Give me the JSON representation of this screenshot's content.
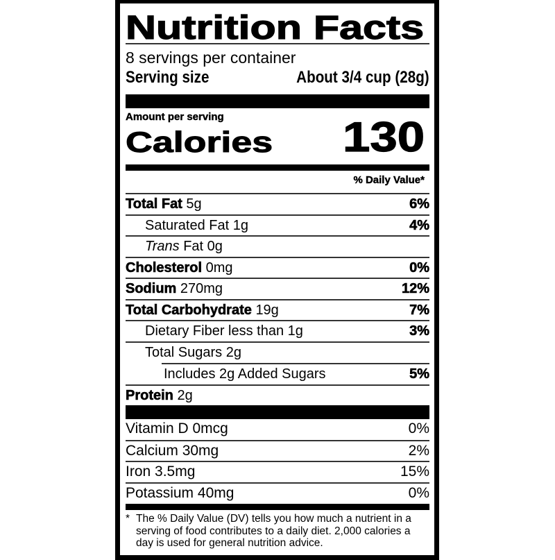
{
  "title": "Nutrition Facts",
  "servings_per_container": "8 servings per container",
  "serving_size_label": "Serving size",
  "serving_size_value": "About 3/4 cup (28g)",
  "amount_per_serving": "Amount per serving",
  "calories_label": "Calories",
  "calories_value": "130",
  "daily_value_header": "% Daily Value*",
  "nutrients": [
    {
      "name": "Total Fat",
      "amount": "5g",
      "dv": "6%",
      "bold": true,
      "indent": 0
    },
    {
      "name": "Saturated Fat",
      "amount": "1g",
      "dv": "4%",
      "bold": false,
      "indent": 1
    },
    {
      "name_italic": "Trans",
      "name": "Fat",
      "amount": "0g",
      "dv": "",
      "bold": false,
      "indent": 1
    },
    {
      "name": "Cholesterol",
      "amount": "0mg",
      "dv": "0%",
      "bold": true,
      "indent": 0
    },
    {
      "name": "Sodium",
      "amount": "270mg",
      "dv": "12%",
      "bold": true,
      "indent": 0
    },
    {
      "name": "Total Carbohydrate",
      "amount": "19g",
      "dv": "7%",
      "bold": true,
      "indent": 0
    },
    {
      "name": "Dietary Fiber",
      "amount": "less than 1g",
      "dv": "3%",
      "bold": false,
      "indent": 1
    },
    {
      "name": "Total Sugars",
      "amount": "2g",
      "dv": "",
      "bold": false,
      "indent": 1
    },
    {
      "name": "Includes 2g Added Sugars",
      "amount": "",
      "dv": "5%",
      "bold": false,
      "indent": 2
    },
    {
      "name": "Protein",
      "amount": "2g",
      "dv": "",
      "bold": true,
      "indent": 0
    }
  ],
  "vitamins": [
    {
      "name": "Vitamin D",
      "amount": "0mcg",
      "dv": "0%"
    },
    {
      "name": "Calcium",
      "amount": "30mg",
      "dv": "2%"
    },
    {
      "name": "Iron",
      "amount": "3.5mg",
      "dv": "15%"
    },
    {
      "name": "Potassium",
      "amount": "40mg",
      "dv": "0%"
    }
  ],
  "footnote_marker": "*",
  "footnote": "The % Daily Value (DV) tells you how much a nutrient in a serving of food contributes to a daily diet. 2,000 calories a day is used for general nutrition advice."
}
